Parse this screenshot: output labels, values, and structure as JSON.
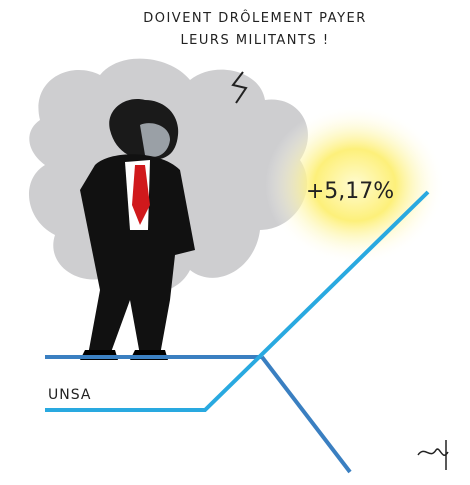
{
  "speech": {
    "lines": [
      "DOIVENT DRÔLEMENT PAYER",
      "LEURS MILITANTS !"
    ]
  },
  "labels": {
    "growth": "+5,17%",
    "union": "UNSA"
  }
}
